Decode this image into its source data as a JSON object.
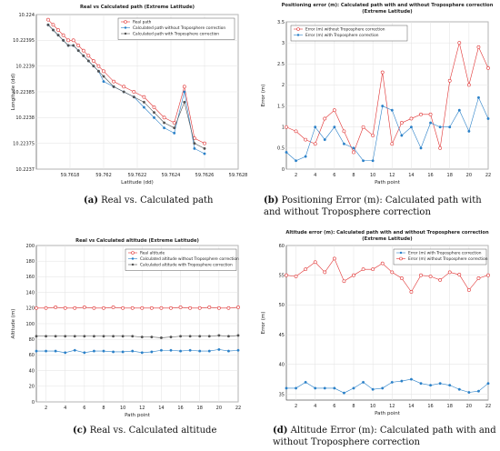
{
  "captions": [
    {
      "tag": "(a)",
      "text": "Real vs. Calculated path"
    },
    {
      "tag": "(b)",
      "text": "Positioning Error (m): Calculated path with and without Troposphere correction"
    },
    {
      "tag": "(c)",
      "text": "Real vs. Calculated altitude"
    },
    {
      "tag": "(d)",
      "text": "Altitude Error (m): Calculated path with and without Troposphere correction"
    }
  ],
  "chart_data": [
    {
      "type": "line",
      "title": "Real vs Calculated path (Extreme Latitude)",
      "xlabel": "Latitude (dd)",
      "ylabel": "Longitude (dd)",
      "xlim": [
        59.7616,
        59.7628
      ],
      "ylim": [
        10.2237,
        10.224
      ],
      "xticks": [
        "59.7618",
        "59.762",
        "59.7622",
        "59.7624",
        "59.7626",
        "59.7628"
      ],
      "xtick_values": [
        59.7618,
        59.762,
        59.7622,
        59.7624,
        59.7626,
        59.7628
      ],
      "yticks": [
        "10.2237",
        "10.22375",
        "10.2238",
        "10.22385",
        "10.2239",
        "10.22395",
        "10.224"
      ],
      "ytick_values": [
        10.2237,
        10.22375,
        10.2238,
        10.22385,
        10.2239,
        10.22395,
        10.224
      ],
      "grid": true,
      "legend_position": "top-right",
      "series": [
        {
          "name": "Real path",
          "color": "#e03030",
          "marker": "circle-open",
          "x": [
            59.76167,
            59.7617,
            59.76173,
            59.76176,
            59.76179,
            59.76182,
            59.76185,
            59.76188,
            59.76191,
            59.76194,
            59.76197,
            59.762,
            59.76206,
            59.76212,
            59.76218,
            59.76224,
            59.7623,
            59.76236,
            59.76242,
            59.76248,
            59.76254,
            59.7626
          ],
          "y": [
            10.22399,
            10.22398,
            10.22397,
            10.22396,
            10.22395,
            10.22395,
            10.22394,
            10.22393,
            10.22392,
            10.22391,
            10.2239,
            10.22389,
            10.22387,
            10.22386,
            10.22385,
            10.22384,
            10.22382,
            10.2238,
            10.22379,
            10.22386,
            10.22376,
            10.22375
          ]
        },
        {
          "name": "Calculated path without Troposphere correction",
          "color": "#2a80c8",
          "marker": "dot",
          "x": [
            59.76167,
            59.7617,
            59.76173,
            59.76176,
            59.76179,
            59.76182,
            59.76185,
            59.76188,
            59.76191,
            59.76194,
            59.76197,
            59.762,
            59.76206,
            59.76212,
            59.76218,
            59.76224,
            59.7623,
            59.76236,
            59.76242,
            59.76248,
            59.76254,
            59.7626
          ],
          "y": [
            10.22398,
            10.22397,
            10.22396,
            10.22395,
            10.22394,
            10.22394,
            10.22393,
            10.22392,
            10.22391,
            10.2239,
            10.22389,
            10.22387,
            10.22386,
            10.22385,
            10.22384,
            10.22382,
            10.2238,
            10.22378,
            10.22377,
            10.22385,
            10.22374,
            10.22373
          ]
        },
        {
          "name": "Calculated path with Troposphere correction",
          "color": "#505050",
          "marker": "dot",
          "x": [
            59.76167,
            59.7617,
            59.76173,
            59.76176,
            59.76179,
            59.76182,
            59.76185,
            59.76188,
            59.76191,
            59.76194,
            59.76197,
            59.762,
            59.76206,
            59.76212,
            59.76218,
            59.76224,
            59.7623,
            59.76236,
            59.76242,
            59.76248,
            59.76254,
            59.7626
          ],
          "y": [
            10.22398,
            10.22397,
            10.22396,
            10.22395,
            10.22394,
            10.22394,
            10.22393,
            10.22392,
            10.22391,
            10.2239,
            10.22389,
            10.22388,
            10.22386,
            10.22385,
            10.22384,
            10.22383,
            10.22381,
            10.22379,
            10.22378,
            10.22383,
            10.22375,
            10.22374
          ]
        }
      ]
    },
    {
      "type": "line",
      "title": "Positioning error (m): Calculated path with and without Troposphere correction",
      "subtitle": "(Extreme Latitude)",
      "xlabel": "Path point",
      "ylabel": "Error (m)",
      "xlim": [
        1,
        22
      ],
      "ylim": [
        0,
        3.5
      ],
      "xticks": [
        "2",
        "4",
        "6",
        "8",
        "10",
        "12",
        "14",
        "16",
        "18",
        "20",
        "22"
      ],
      "xtick_values": [
        2,
        4,
        6,
        8,
        10,
        12,
        14,
        16,
        18,
        20,
        22
      ],
      "yticks": [
        "0",
        "0.5",
        "1",
        "1.5",
        "2",
        "2.5",
        "3",
        "3.5"
      ],
      "ytick_values": [
        0,
        0.5,
        1,
        1.5,
        2,
        2.5,
        3,
        3.5
      ],
      "grid": true,
      "legend_position": "top-left",
      "series": [
        {
          "name": "Error (m) without Troposphere correction",
          "color": "#e03030",
          "marker": "circle-open",
          "x": [
            1,
            2,
            3,
            4,
            5,
            6,
            7,
            8,
            9,
            10,
            11,
            12,
            13,
            14,
            15,
            16,
            17,
            18,
            19,
            20,
            21,
            22
          ],
          "y": [
            1.0,
            0.9,
            0.7,
            0.6,
            1.2,
            1.4,
            0.9,
            0.4,
            1.0,
            0.8,
            2.3,
            0.6,
            1.1,
            1.2,
            1.3,
            1.3,
            0.5,
            2.1,
            3.0,
            2.0,
            2.9,
            2.4
          ]
        },
        {
          "name": "Error (m) with Troposphere correction",
          "color": "#2a80c8",
          "marker": "dot",
          "x": [
            1,
            2,
            3,
            4,
            5,
            6,
            7,
            8,
            9,
            10,
            11,
            12,
            13,
            14,
            15,
            16,
            17,
            18,
            19,
            20,
            21,
            22
          ],
          "y": [
            0.4,
            0.2,
            0.3,
            1.0,
            0.7,
            1.0,
            0.6,
            0.5,
            0.2,
            0.2,
            1.5,
            1.4,
            0.8,
            1.0,
            0.5,
            1.1,
            1.0,
            1.0,
            1.4,
            0.9,
            1.7,
            1.2
          ]
        }
      ]
    },
    {
      "type": "line",
      "title": "Real vs Calculated altitude (Extreme Latitude)",
      "xlabel": "Path point",
      "ylabel": "Altitude (m)",
      "xlim": [
        1,
        22
      ],
      "ylim": [
        0,
        200
      ],
      "xticks": [
        "2",
        "4",
        "6",
        "8",
        "10",
        "12",
        "14",
        "16",
        "18",
        "20",
        "22"
      ],
      "xtick_values": [
        2,
        4,
        6,
        8,
        10,
        12,
        14,
        16,
        18,
        20,
        22
      ],
      "yticks": [
        "0",
        "20",
        "40",
        "60",
        "80",
        "100",
        "120",
        "140",
        "160",
        "180",
        "200"
      ],
      "ytick_values": [
        0,
        20,
        40,
        60,
        80,
        100,
        120,
        140,
        160,
        180,
        200
      ],
      "grid": true,
      "legend_position": "top-right",
      "series": [
        {
          "name": "Real altitude",
          "color": "#e03030",
          "marker": "circle-open",
          "x": [
            1,
            2,
            3,
            4,
            5,
            6,
            7,
            8,
            9,
            10,
            11,
            12,
            13,
            14,
            15,
            16,
            17,
            18,
            19,
            20,
            21,
            22
          ],
          "y": [
            120,
            120,
            121,
            120,
            120,
            121,
            120,
            120,
            121,
            120,
            120,
            120,
            120,
            120,
            120,
            121,
            120,
            120,
            121,
            120,
            120,
            121
          ]
        },
        {
          "name": "Calculated altitude without Troposphere correction",
          "color": "#2a80c8",
          "marker": "dot",
          "x": [
            1,
            2,
            3,
            4,
            5,
            6,
            7,
            8,
            9,
            10,
            11,
            12,
            13,
            14,
            15,
            16,
            17,
            18,
            19,
            20,
            21,
            22
          ],
          "y": [
            65,
            65,
            65,
            63,
            66,
            63,
            65,
            65,
            64,
            64,
            65,
            63,
            64,
            66,
            66,
            65,
            66,
            65,
            65,
            67,
            65,
            66
          ]
        },
        {
          "name": "Calculated altitude with Troposphere correction",
          "color": "#505050",
          "marker": "dot",
          "x": [
            1,
            2,
            3,
            4,
            5,
            6,
            7,
            8,
            9,
            10,
            11,
            12,
            13,
            14,
            15,
            16,
            17,
            18,
            19,
            20,
            21,
            22
          ],
          "y": [
            84,
            84,
            84,
            84,
            84,
            84,
            84,
            84,
            84,
            84,
            84,
            83,
            83,
            82,
            83,
            84,
            84,
            84,
            84,
            85,
            84,
            85
          ]
        }
      ]
    },
    {
      "type": "line",
      "title": "Altitude error (m): Calculated path with and without Troposphere correction",
      "subtitle": "(Extreme Latitude)",
      "xlabel": "Path point",
      "ylabel": "Error (m)",
      "xlim": [
        1,
        22
      ],
      "ylim": [
        34,
        60
      ],
      "xticks": [
        "2",
        "4",
        "6",
        "8",
        "10",
        "12",
        "14",
        "16",
        "18",
        "20",
        "22"
      ],
      "xtick_values": [
        2,
        4,
        6,
        8,
        10,
        12,
        14,
        16,
        18,
        20,
        22
      ],
      "yticks": [
        "35",
        "40",
        "45",
        "50",
        "55",
        "60"
      ],
      "ytick_values": [
        35,
        40,
        45,
        50,
        55,
        60
      ],
      "grid": true,
      "legend_position": "top-right",
      "series": [
        {
          "name": "Error (m) with Troposphere correction",
          "color": "#2a80c8",
          "marker": "dot",
          "x": [
            1,
            2,
            3,
            4,
            5,
            6,
            7,
            8,
            9,
            10,
            11,
            12,
            13,
            14,
            15,
            16,
            17,
            18,
            19,
            20,
            21,
            22
          ],
          "y": [
            36,
            36,
            37,
            36,
            36,
            36,
            35.2,
            36,
            37,
            35.8,
            36,
            37,
            37.2,
            37.5,
            36.8,
            36.5,
            36.8,
            36.5,
            35.8,
            35.3,
            35.5,
            36.8
          ]
        },
        {
          "name": "Error (m) without Troposphere correction",
          "color": "#e03030",
          "marker": "circle-open",
          "x": [
            1,
            2,
            3,
            4,
            5,
            6,
            7,
            8,
            9,
            10,
            11,
            12,
            13,
            14,
            15,
            16,
            17,
            18,
            19,
            20,
            21,
            22
          ],
          "y": [
            55,
            54.8,
            56,
            57.2,
            55.5,
            57.8,
            54,
            55,
            56,
            56,
            57,
            55.5,
            54.5,
            52.2,
            55,
            54.8,
            54.2,
            55.5,
            55.1,
            52.5,
            54.5,
            55
          ]
        }
      ]
    }
  ]
}
